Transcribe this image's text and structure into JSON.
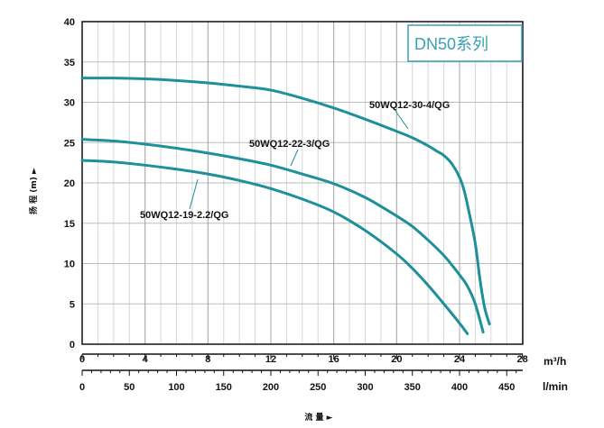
{
  "chart_data": {
    "type": "line",
    "title": "DN50系列",
    "ylabel": "扬 程 (m) ►",
    "xlabel": "流 量 ►",
    "x_unit_primary": "m³/h",
    "x_unit_secondary": "l/min",
    "ylim": [
      0,
      40
    ],
    "xlim": [
      0,
      28
    ],
    "y_ticks": [
      0,
      5,
      10,
      15,
      20,
      25,
      30,
      35,
      40
    ],
    "x_ticks_primary": [
      0,
      4,
      8,
      12,
      16,
      20,
      24,
      28
    ],
    "x_ticks_secondary": [
      0,
      50,
      100,
      150,
      200,
      250,
      300,
      350,
      400,
      450
    ],
    "grid": true,
    "series": [
      {
        "name": "50WQ12-30-4/QG",
        "x": [
          0,
          2,
          4,
          6,
          8,
          10,
          12,
          14,
          16,
          18,
          20,
          21,
          22,
          22.5,
          23,
          23.5,
          24,
          24.3,
          24.6,
          25,
          25.3,
          25.6,
          25.9
        ],
        "y": [
          33,
          33,
          32.9,
          32.7,
          32.4,
          32,
          31.5,
          30.5,
          29.3,
          27.9,
          26.4,
          25.6,
          24.6,
          24,
          23.4,
          22.4,
          20.7,
          19,
          16.4,
          12.5,
          8,
          4.5,
          2.5
        ]
      },
      {
        "name": "50WQ12-22-3/QG",
        "x": [
          0,
          2,
          4,
          6,
          8,
          10,
          12,
          14,
          16,
          18,
          20,
          21,
          22,
          23,
          24,
          24.5,
          25,
          25.5
        ],
        "y": [
          25.4,
          25.2,
          24.8,
          24.3,
          23.7,
          23,
          22.2,
          21.1,
          19.9,
          18.2,
          15.9,
          14.6,
          12.9,
          11,
          8.6,
          7.2,
          5,
          1.5
        ]
      },
      {
        "name": "50WQ12-19-2.2/QG",
        "x": [
          0,
          2,
          4,
          6,
          8,
          10,
          12,
          14,
          16,
          18,
          20,
          21,
          22,
          23,
          24,
          24.5
        ],
        "y": [
          22.8,
          22.6,
          22.2,
          21.7,
          21.1,
          20.3,
          19.3,
          18,
          16.4,
          14.1,
          11.2,
          9.4,
          7.3,
          5,
          2.6,
          1.3
        ]
      }
    ],
    "annotations": [
      "50WQ12-30-4/QG",
      "50WQ12-22-3/QG",
      "50WQ12-19-2.2/QG"
    ]
  }
}
